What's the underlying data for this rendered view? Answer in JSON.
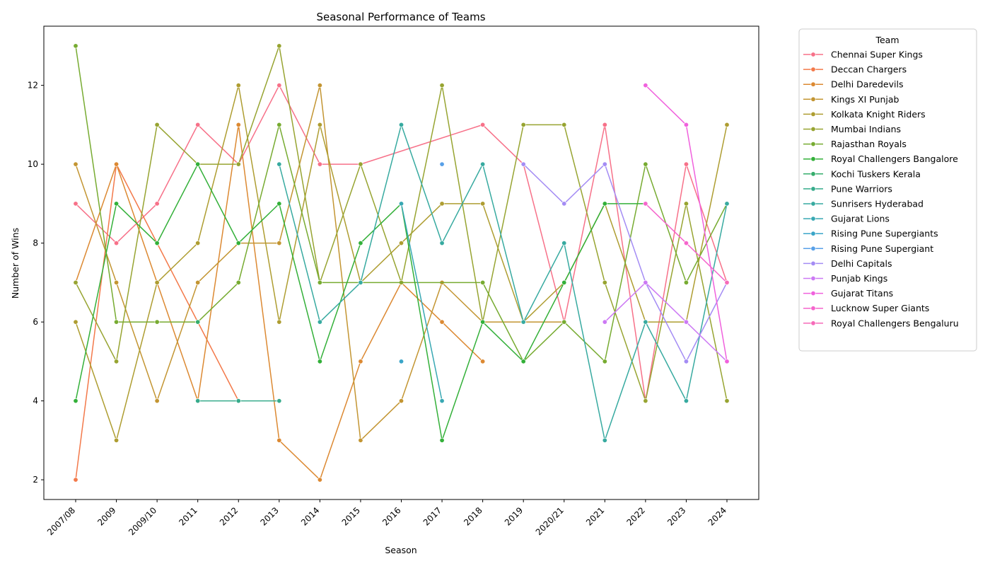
{
  "chart_data": {
    "type": "line",
    "title": "Seasonal Performance of Teams",
    "xlabel": "Season",
    "ylabel": "Number of Wins",
    "categories": [
      "2007/08",
      "2009",
      "2009/10",
      "2011",
      "2012",
      "2013",
      "2014",
      "2015",
      "2016",
      "2017",
      "2018",
      "2019",
      "2020/21",
      "2021",
      "2022",
      "2023",
      "2024"
    ],
    "ylim": [
      1.5,
      13.5
    ],
    "yticks": [
      2,
      4,
      6,
      8,
      10,
      12
    ],
    "grid": false,
    "legend": {
      "title": "Team",
      "placement": "outside-top-right"
    },
    "series": [
      {
        "name": "Chennai Super Kings",
        "color": "#f77189",
        "values": [
          9,
          8,
          9,
          11,
          10,
          12,
          10,
          10,
          null,
          null,
          11,
          10,
          6,
          11,
          4,
          10,
          7
        ]
      },
      {
        "name": "Deccan Chargers",
        "color": "#f3794a",
        "values": [
          2,
          10,
          8,
          6,
          4,
          null,
          null,
          null,
          null,
          null,
          null,
          null,
          null,
          null,
          null,
          null,
          null
        ]
      },
      {
        "name": "Delhi Daredevils",
        "color": "#dc8932",
        "values": [
          7,
          10,
          7,
          4,
          11,
          3,
          2,
          5,
          7,
          6,
          5,
          null,
          null,
          null,
          null,
          null,
          null
        ]
      },
      {
        "name": "Kings XI Punjab",
        "color": "#c39532",
        "values": [
          10,
          7,
          4,
          7,
          8,
          8,
          12,
          3,
          4,
          7,
          6,
          6,
          6,
          null,
          null,
          null,
          null
        ]
      },
      {
        "name": "Kolkata Knight Riders",
        "color": "#ae9d31",
        "values": [
          6,
          3,
          7,
          8,
          12,
          6,
          11,
          7,
          8,
          9,
          9,
          6,
          7,
          9,
          6,
          6,
          11
        ]
      },
      {
        "name": "Mumbai Indians",
        "color": "#97a431",
        "values": [
          7,
          5,
          11,
          10,
          10,
          13,
          7,
          10,
          7,
          12,
          6,
          11,
          11,
          7,
          4,
          9,
          4
        ]
      },
      {
        "name": "Rajasthan Royals",
        "color": "#77ab31",
        "values": [
          13,
          6,
          6,
          6,
          7,
          11,
          7,
          7,
          null,
          null,
          7,
          5,
          6,
          5,
          10,
          7,
          9
        ]
      },
      {
        "name": "Royal Challengers Bangalore",
        "color": "#33b039",
        "values": [
          4,
          9,
          8,
          10,
          8,
          9,
          5,
          8,
          9,
          3,
          6,
          5,
          7,
          9,
          9,
          null,
          null
        ]
      },
      {
        "name": "Kochi Tuskers Kerala",
        "color": "#35ad6c",
        "values": [
          null,
          null,
          null,
          6,
          null,
          null,
          null,
          null,
          null,
          null,
          null,
          null,
          null,
          null,
          null,
          null,
          null
        ]
      },
      {
        "name": "Pune Warriors",
        "color": "#36ab8b",
        "values": [
          null,
          null,
          null,
          4,
          4,
          4,
          null,
          null,
          null,
          null,
          null,
          null,
          null,
          null,
          null,
          null,
          null
        ]
      },
      {
        "name": "Sunrisers Hyderabad",
        "color": "#37aaa0",
        "values": [
          null,
          null,
          null,
          null,
          null,
          10,
          6,
          7,
          11,
          8,
          10,
          6,
          8,
          3,
          6,
          4,
          9
        ]
      },
      {
        "name": "Gujarat Lions",
        "color": "#38a8b3",
        "values": [
          null,
          null,
          null,
          null,
          null,
          null,
          null,
          null,
          9,
          4,
          null,
          null,
          null,
          null,
          null,
          null,
          null
        ]
      },
      {
        "name": "Rising Pune Supergiants",
        "color": "#3aa5c8",
        "values": [
          null,
          null,
          null,
          null,
          null,
          null,
          null,
          null,
          5,
          null,
          null,
          null,
          null,
          null,
          null,
          null,
          null
        ]
      },
      {
        "name": "Rising Pune Supergiant",
        "color": "#58a0e8",
        "values": [
          null,
          null,
          null,
          null,
          null,
          null,
          null,
          null,
          null,
          10,
          null,
          null,
          null,
          null,
          null,
          null,
          null
        ]
      },
      {
        "name": "Delhi Capitals",
        "color": "#a48cf4",
        "values": [
          null,
          null,
          null,
          null,
          null,
          null,
          null,
          null,
          null,
          null,
          null,
          10,
          9,
          10,
          7,
          5,
          7
        ]
      },
      {
        "name": "Punjab Kings",
        "color": "#cc79f4",
        "values": [
          null,
          null,
          null,
          null,
          null,
          null,
          null,
          null,
          null,
          null,
          null,
          null,
          null,
          6,
          7,
          6,
          5
        ]
      },
      {
        "name": "Gujarat Titans",
        "color": "#f061dd",
        "values": [
          null,
          null,
          null,
          null,
          null,
          null,
          null,
          null,
          null,
          null,
          null,
          null,
          null,
          null,
          12,
          11,
          5
        ]
      },
      {
        "name": "Lucknow Super Giants",
        "color": "#f565cc",
        "values": [
          null,
          null,
          null,
          null,
          null,
          null,
          null,
          null,
          null,
          null,
          null,
          null,
          null,
          null,
          9,
          8,
          7
        ]
      },
      {
        "name": "Royal Challengers Bengaluru",
        "color": "#f66bb9",
        "values": [
          null,
          null,
          null,
          null,
          null,
          null,
          null,
          null,
          null,
          null,
          null,
          null,
          null,
          null,
          null,
          null,
          7
        ]
      }
    ]
  }
}
